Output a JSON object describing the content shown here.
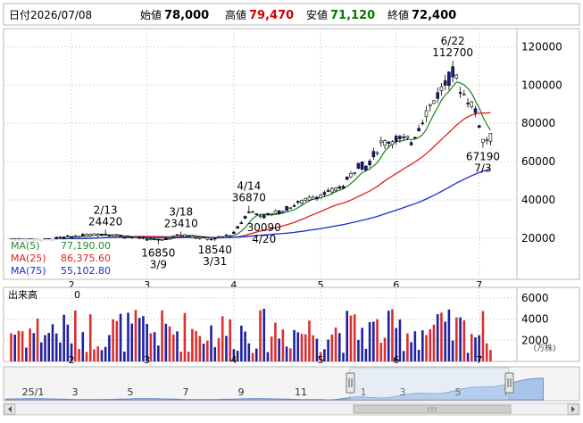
{
  "header": {
    "date_label": "日付",
    "date": "2026/07/08",
    "open_label": "始値",
    "open": "78,000",
    "high_label": "高値",
    "high": "79,470",
    "low_label": "安値",
    "low": "71,120",
    "close_label": "終値",
    "close": "72,400"
  },
  "colors": {
    "up_candle": "#ffffff",
    "down_candle": "#1a1a99",
    "high_text": "#d40000",
    "low_text": "#007a00",
    "ma5": "#2a8a2a",
    "ma25": "#e02020",
    "ma75": "#1a2fd0",
    "volume_up": "#d83030",
    "volume_down": "#2020a0",
    "navigator_fill": "#a9c4ea"
  },
  "legend": {
    "ma5": "MA(5)",
    "ma5_value": "77,190.00",
    "ma25": "MA(25)",
    "ma25_value": "86,375.60",
    "ma75": "MA(75)",
    "ma75_value": "55,102.80"
  },
  "chart_data": [
    {
      "type": "candlestick",
      "title": "",
      "x_ticks": [
        {
          "label": "2",
          "day": 8
        },
        {
          "label": "3",
          "day": 28
        },
        {
          "label": "4",
          "day": 51
        },
        {
          "label": "5",
          "day": 74
        },
        {
          "label": "6",
          "day": 94
        },
        {
          "label": "7",
          "day": 116
        }
      ],
      "y_ticks": [
        "20000",
        "40000",
        "60000",
        "80000",
        "100000",
        "120000"
      ],
      "y_tick_values": [
        20000,
        40000,
        60000,
        80000,
        100000,
        120000
      ],
      "ylim": [
        -1500,
        129500
      ],
      "xlim": [
        -10,
        126
      ],
      "annotations": [
        {
          "date": "2/13",
          "value": "24420",
          "day": 17,
          "at": 24420,
          "pos": "above"
        },
        {
          "date": "3/9",
          "value": "16850",
          "day": 31,
          "at": 16850,
          "pos": "below"
        },
        {
          "date": "3/18",
          "value": "23410",
          "day": 37,
          "at": 23410,
          "pos": "above"
        },
        {
          "date": "3/31",
          "value": "18540",
          "day": 46,
          "at": 18540,
          "pos": "below"
        },
        {
          "date": "4/14",
          "value": "36870",
          "day": 55,
          "at": 36870,
          "pos": "above"
        },
        {
          "date": "4/20",
          "value": "30090",
          "day": 59,
          "at": 30090,
          "pos": "below"
        },
        {
          "date": "6/22",
          "value": "112700",
          "day": 109,
          "at": 112700,
          "pos": "above"
        },
        {
          "date": "7/3",
          "value": "67190",
          "day": 117,
          "at": 67190,
          "pos": "below"
        }
      ]
    },
    {
      "type": "bar",
      "title": "",
      "ylabel": "出来高",
      "y_header_value": "0",
      "unit": "(万株)",
      "y_ticks": [
        "2000",
        "4000",
        "6000"
      ],
      "y_tick_values": [
        2000,
        4000,
        6000
      ],
      "ylim": [
        0,
        7000
      ]
    },
    {
      "type": "area",
      "title": "",
      "x_ticks": [
        "25/1",
        "3",
        "5",
        "7",
        "9",
        "11",
        "1",
        "3",
        "5",
        "7"
      ]
    }
  ]
}
